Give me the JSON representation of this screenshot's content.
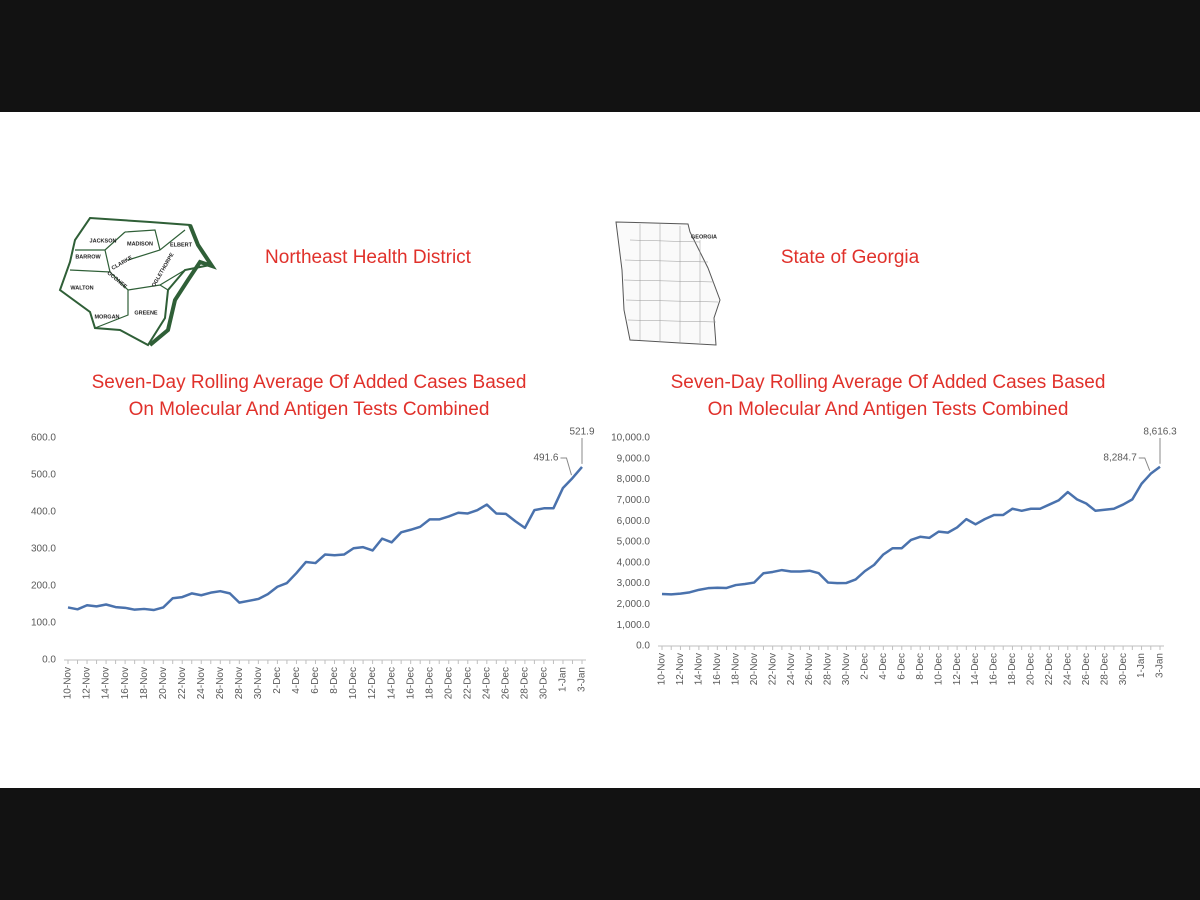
{
  "headings": [
    "Northeast Health District",
    "State of Georgia"
  ],
  "maps": [
    {
      "labels": [
        "JACKSON",
        "MADISON",
        "ELBERT",
        "BARROW",
        "CLARKE",
        "OCONEE",
        "OGLETHORPE",
        "WALTON",
        "MORGAN",
        "GREENE"
      ]
    },
    {
      "labels": [
        "GEORGIA"
      ]
    }
  ],
  "chart_data": [
    {
      "type": "line",
      "title": [
        "Seven-Day Rolling Average Of  Added Cases Based",
        "On Molecular And Antigen Tests Combined"
      ],
      "categories": [
        "10-Nov",
        null,
        "12-Nov",
        null,
        "14-Nov",
        null,
        "16-Nov",
        null,
        "18-Nov",
        null,
        "20-Nov",
        null,
        "22-Nov",
        null,
        "24-Nov",
        null,
        "26-Nov",
        null,
        "28-Nov",
        null,
        "30-Nov",
        null,
        "2-Dec",
        null,
        "4-Dec",
        null,
        "6-Dec",
        null,
        "8-Dec",
        null,
        "10-Dec",
        null,
        "12-Dec",
        null,
        "14-Dec",
        null,
        "16-Dec",
        null,
        "18-Dec",
        null,
        "20-Dec",
        null,
        "22-Dec",
        null,
        "24-Dec",
        null,
        "26-Dec",
        null,
        "28-Dec",
        null,
        "30-Dec",
        null,
        "1-Jan",
        null,
        "3-Jan"
      ],
      "series": [
        {
          "color": "#4a72ad",
          "values": [
            142,
            137,
            148,
            145,
            150,
            143,
            141,
            136,
            138,
            135,
            142,
            167,
            170,
            180,
            175,
            182,
            186,
            180,
            155,
            160,
            165,
            178,
            198,
            208,
            235,
            265,
            262,
            285,
            283,
            285,
            302,
            305,
            296,
            328,
            318,
            345,
            352,
            360,
            380,
            380,
            388,
            398,
            396,
            405,
            420,
            396,
            395,
            375,
            357,
            405,
            410,
            410,
            465,
            491.6,
            521.9
          ],
          "value_labels": [
            null,
            null,
            null,
            null,
            null,
            null,
            null,
            null,
            null,
            null,
            null,
            null,
            null,
            null,
            null,
            null,
            null,
            null,
            null,
            null,
            null,
            null,
            null,
            null,
            null,
            null,
            null,
            null,
            null,
            null,
            null,
            null,
            null,
            null,
            null,
            null,
            null,
            null,
            null,
            null,
            null,
            null,
            null,
            null,
            null,
            null,
            null,
            null,
            null,
            null,
            null,
            null,
            null,
            "491.6",
            "521.9"
          ]
        }
      ],
      "ylim": [
        0,
        600
      ],
      "yticks": [
        {
          "value": 0,
          "label": "0.0"
        },
        {
          "value": 100,
          "label": "100.0"
        },
        {
          "value": 200,
          "label": "200.0"
        },
        {
          "value": 300,
          "label": "300.0"
        },
        {
          "value": 400,
          "label": "400.0"
        },
        {
          "value": 500,
          "label": "500.0"
        },
        {
          "value": 600,
          "label": "600.0"
        }
      ]
    },
    {
      "type": "line",
      "title": [
        "Seven-Day Rolling Average Of  Added Cases Based",
        "On Molecular And Antigen Tests Combined"
      ],
      "categories": [
        "10-Nov",
        null,
        "12-Nov",
        null,
        "14-Nov",
        null,
        "16-Nov",
        null,
        "18-Nov",
        null,
        "20-Nov",
        null,
        "22-Nov",
        null,
        "24-Nov",
        null,
        "26-Nov",
        null,
        "28-Nov",
        null,
        "30-Nov",
        null,
        "2-Dec",
        null,
        "4-Dec",
        null,
        "6-Dec",
        null,
        "8-Dec",
        null,
        "10-Dec",
        null,
        "12-Dec",
        null,
        "14-Dec",
        null,
        "16-Dec",
        null,
        "18-Dec",
        null,
        "20-Dec",
        null,
        "22-Dec",
        null,
        "24-Dec",
        null,
        "26-Dec",
        null,
        "28-Dec",
        null,
        "30-Dec",
        null,
        "1-Jan",
        null,
        "3-Jan"
      ],
      "series": [
        {
          "color": "#4a72ad",
          "values": [
            2500,
            2480,
            2520,
            2580,
            2700,
            2780,
            2800,
            2790,
            2930,
            2980,
            3050,
            3500,
            3560,
            3650,
            3580,
            3580,
            3620,
            3500,
            3050,
            3020,
            3030,
            3200,
            3600,
            3900,
            4400,
            4700,
            4700,
            5100,
            5250,
            5200,
            5500,
            5450,
            5700,
            6100,
            5850,
            6100,
            6300,
            6300,
            6600,
            6500,
            6600,
            6600,
            6800,
            7000,
            7400,
            7050,
            6850,
            6500,
            6550,
            6600,
            6800,
            7050,
            7800,
            8284.7,
            8616.3
          ],
          "value_labels": [
            null,
            null,
            null,
            null,
            null,
            null,
            null,
            null,
            null,
            null,
            null,
            null,
            null,
            null,
            null,
            null,
            null,
            null,
            null,
            null,
            null,
            null,
            null,
            null,
            null,
            null,
            null,
            null,
            null,
            null,
            null,
            null,
            null,
            null,
            null,
            null,
            null,
            null,
            null,
            null,
            null,
            null,
            null,
            null,
            null,
            null,
            null,
            null,
            null,
            null,
            null,
            null,
            null,
            "8,284.7",
            "8,616.3"
          ]
        }
      ],
      "ylim": [
        0,
        10000
      ],
      "yticks": [
        {
          "value": 0,
          "label": "0.0"
        },
        {
          "value": 1000,
          "label": "1,000.0"
        },
        {
          "value": 2000,
          "label": "2,000.0"
        },
        {
          "value": 3000,
          "label": "3,000.0"
        },
        {
          "value": 4000,
          "label": "4,000.0"
        },
        {
          "value": 5000,
          "label": "5,000.0"
        },
        {
          "value": 6000,
          "label": "6,000.0"
        },
        {
          "value": 7000,
          "label": "7,000.0"
        },
        {
          "value": 8000,
          "label": "8,000.0"
        },
        {
          "value": 9000,
          "label": "9,000.0"
        },
        {
          "value": 10000,
          "label": "10,000.0"
        }
      ]
    }
  ]
}
